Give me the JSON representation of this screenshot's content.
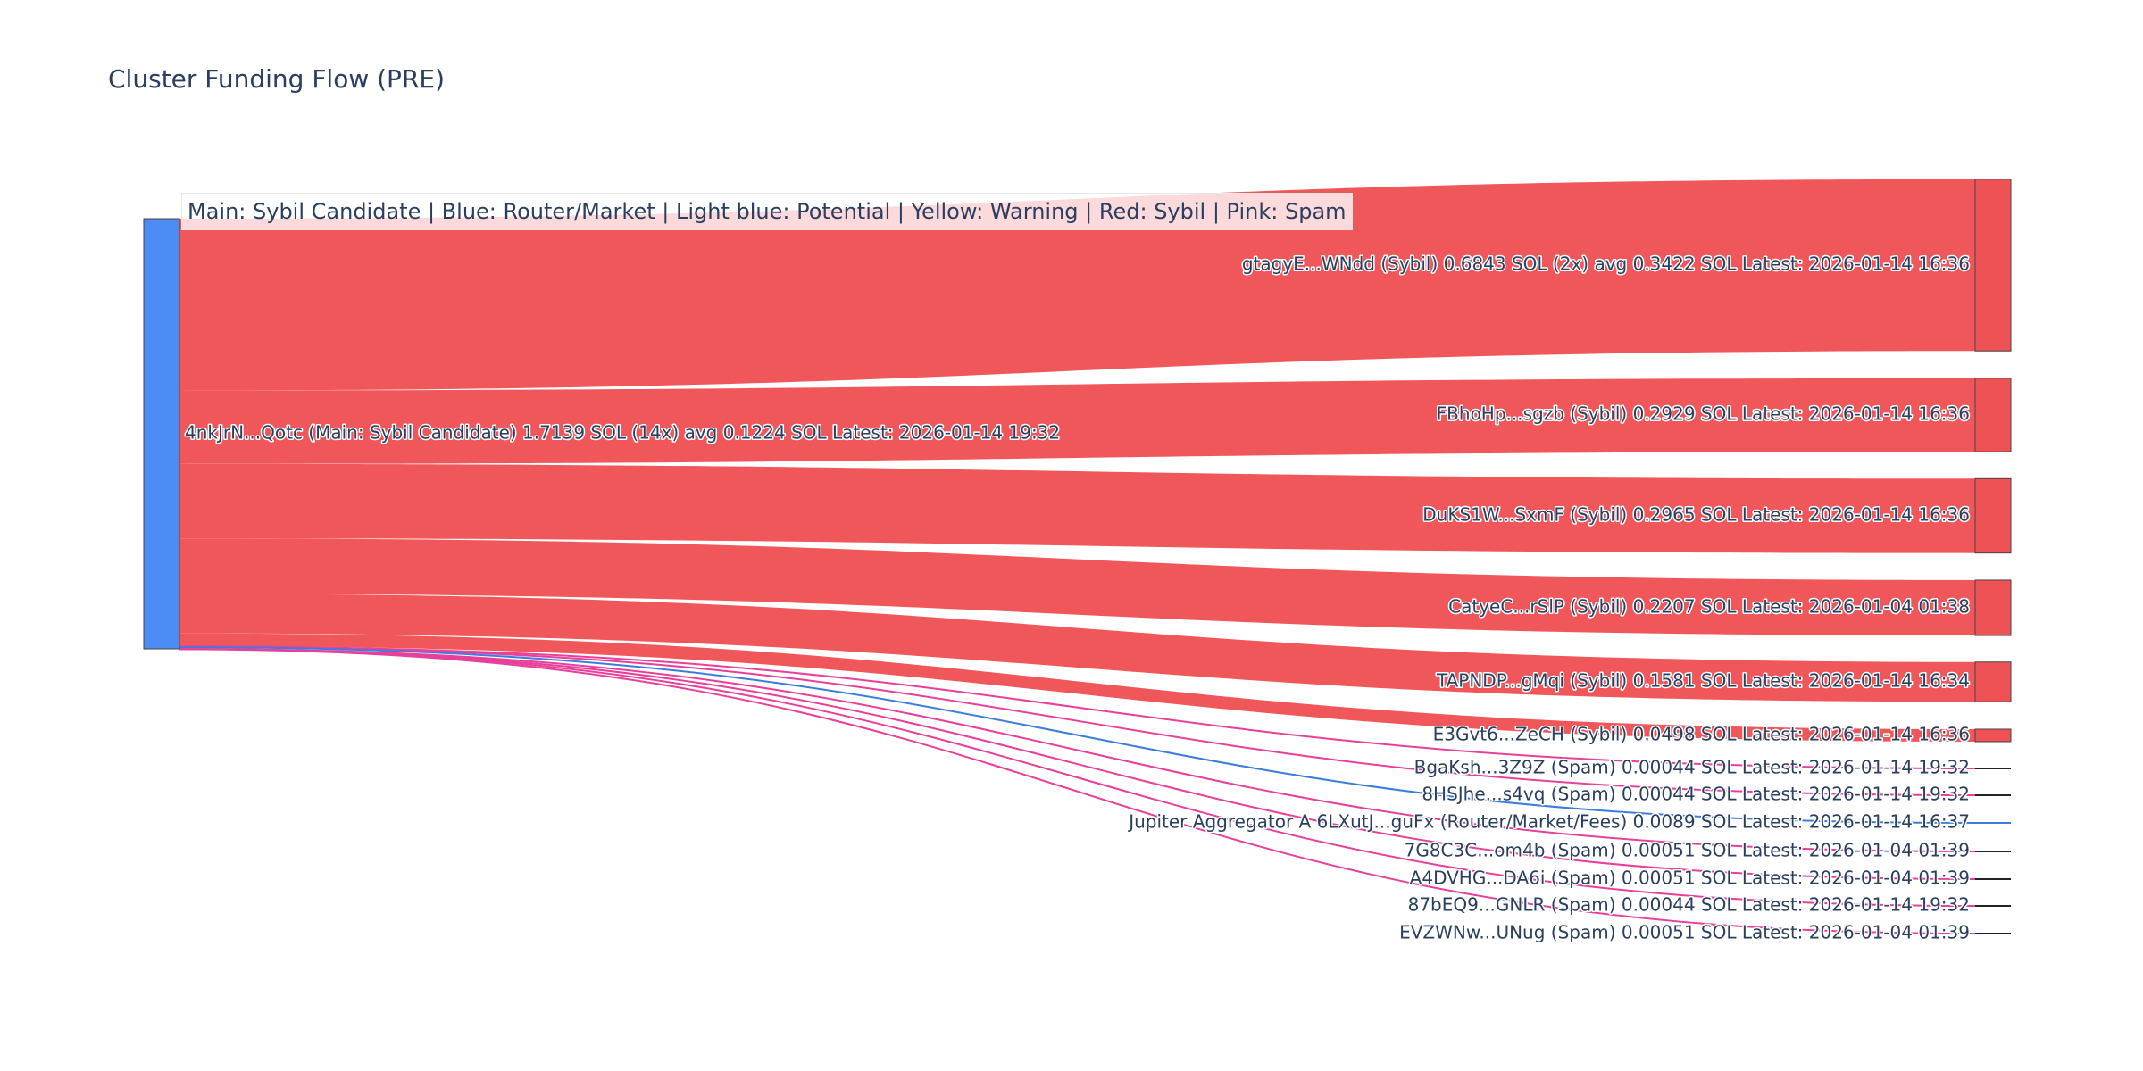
{
  "title": "Cluster Funding Flow (PRE)",
  "legend": "Main: Sybil Candidate  |  Blue: Router/Market | Light blue: Potential | Yellow: Warning | Red: Sybil | Pink: Spam",
  "colors": {
    "sybil": "#ef5255",
    "spam": "#e8409a",
    "router": "#3b7ddd",
    "main_node": "#4c8df5",
    "node_border": "#444444"
  },
  "chart_data": {
    "type": "sankey",
    "source": {
      "label": "4nkJrN...Qotc (Main: Sybil Candidate) 1.7139 SOL (14x) avg 0.1224 SOL Latest: 2026-01-14 19:32",
      "value": 1.7139
    },
    "targets": [
      {
        "label": "gtagyE...WNdd (Sybil) 0.6843 SOL (2x) avg 0.3422 SOL Latest: 2026-01-14 16:36",
        "value": 0.6843,
        "kind": "sybil"
      },
      {
        "label": "FBhoHp...sgzb (Sybil) 0.2929 SOL Latest: 2026-01-14 16:36",
        "value": 0.2929,
        "kind": "sybil"
      },
      {
        "label": "DuKS1W...SxmF (Sybil) 0.2965 SOL Latest: 2026-01-14 16:36",
        "value": 0.2965,
        "kind": "sybil"
      },
      {
        "label": "CatyeC...rSlP (Sybil) 0.2207 SOL Latest: 2026-01-04 01:38",
        "value": 0.2207,
        "kind": "sybil"
      },
      {
        "label": "TAPNDP...gMqi (Sybil) 0.1581 SOL Latest: 2026-01-14 16:34",
        "value": 0.1581,
        "kind": "sybil"
      },
      {
        "label": "E3Gvt6...ZeCH (Sybil) 0.0498 SOL Latest: 2026-01-14 16:36",
        "value": 0.0498,
        "kind": "sybil"
      },
      {
        "label": "BgaKsh...3Z9Z (Spam) 0.00044 SOL Latest: 2026-01-14 19:32",
        "value": 0.00044,
        "kind": "spam"
      },
      {
        "label": "8HSJhe...s4vq (Spam) 0.00044 SOL Latest: 2026-01-14 19:32",
        "value": 0.00044,
        "kind": "spam"
      },
      {
        "label": "Jupiter Aggregator A 6LXutJ...guFx (Router/Market/Fees) 0.0089 SOL Latest: 2026-01-14 16:37",
        "value": 0.0089,
        "kind": "router"
      },
      {
        "label": "7G8C3C...om4b (Spam) 0.00051 SOL Latest: 2026-01-04 01:39",
        "value": 0.00051,
        "kind": "spam"
      },
      {
        "label": "A4DVHG...DA6i (Spam) 0.00051 SOL Latest: 2026-01-04 01:39",
        "value": 0.00051,
        "kind": "spam"
      },
      {
        "label": "87bEQ9...GNLR (Spam) 0.00044 SOL Latest: 2026-01-14 19:32",
        "value": 0.00044,
        "kind": "spam"
      },
      {
        "label": "EVZWNw...UNug (Spam) 0.00051 SOL Latest: 2026-01-04 01:39",
        "value": 0.00051,
        "kind": "spam"
      }
    ]
  }
}
